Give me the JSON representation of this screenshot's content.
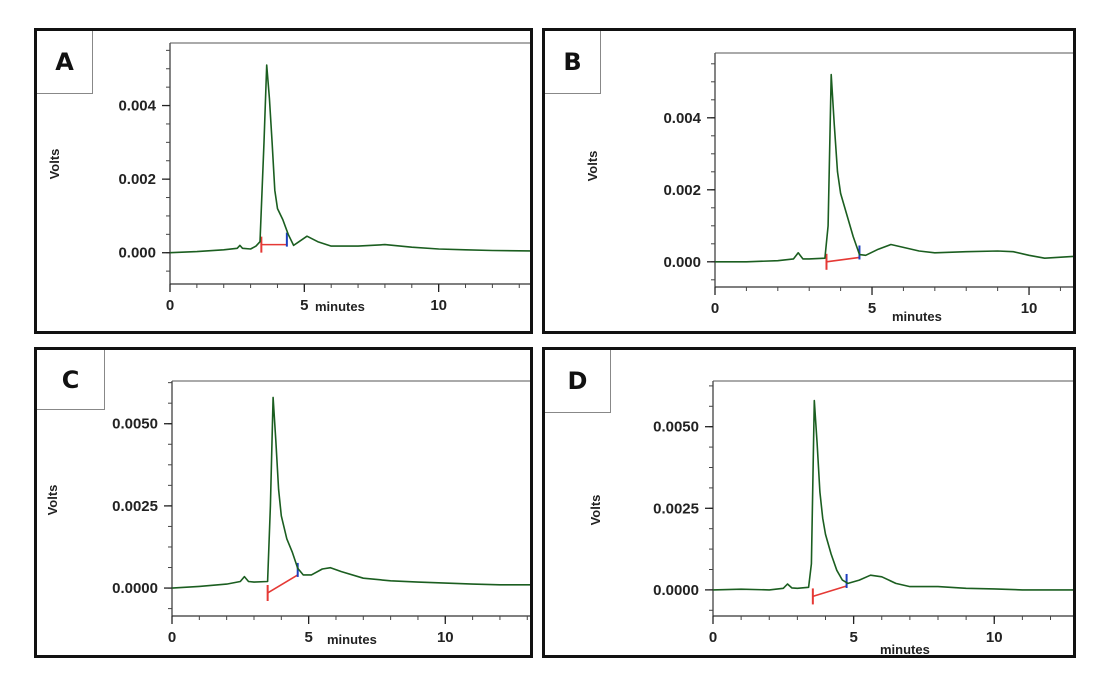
{
  "chart_data": [
    {
      "type": "line",
      "panel_label": "A",
      "xlabel": "minutes",
      "ylabel": "Volts",
      "x_ticks": [
        0,
        5,
        10
      ],
      "y_ticks": [
        0.0,
        0.002,
        0.004
      ],
      "y_tick_labels": [
        "0.000",
        "0.002",
        "0.004"
      ],
      "xlim": [
        0,
        13.4
      ],
      "ylim": [
        -0.00085,
        0.0057
      ],
      "series": [
        {
          "color": "#1b5e20",
          "points": [
            [
              0,
              0.0
            ],
            [
              1.0,
              3e-05
            ],
            [
              2.0,
              8e-05
            ],
            [
              2.5,
              0.00012
            ],
            [
              2.6,
              0.0002
            ],
            [
              2.7,
              0.00012
            ],
            [
              3.0,
              0.0001
            ],
            [
              3.2,
              0.00018
            ],
            [
              3.35,
              0.0003
            ],
            [
              3.5,
              0.003
            ],
            [
              3.6,
              0.0051
            ],
            [
              3.7,
              0.0042
            ],
            [
              3.8,
              0.003
            ],
            [
              3.9,
              0.0017
            ],
            [
              4.0,
              0.0012
            ],
            [
              4.2,
              0.0009
            ],
            [
              4.4,
              0.0005
            ],
            [
              4.6,
              0.0002
            ],
            [
              4.8,
              0.0003
            ],
            [
              5.1,
              0.00045
            ],
            [
              5.5,
              0.0003
            ],
            [
              6.0,
              0.00018
            ],
            [
              7.0,
              0.00018
            ],
            [
              8.0,
              0.00022
            ],
            [
              9.0,
              0.00015
            ],
            [
              10.0,
              0.0001
            ],
            [
              11.0,
              8e-05
            ],
            [
              12.0,
              6e-05
            ],
            [
              13.4,
              5e-05
            ]
          ]
        }
      ],
      "integration_marks": {
        "start": {
          "x": 3.4,
          "y": 0.00022,
          "color": "#e53935"
        },
        "end": {
          "x": 4.35,
          "y": 0.00022,
          "color": "#1e3fbf"
        },
        "baseline_color": "#e53935"
      }
    },
    {
      "type": "line",
      "panel_label": "B",
      "xlabel": "minutes",
      "ylabel": "Volts",
      "x_ticks": [
        0,
        5,
        10
      ],
      "y_ticks": [
        0.0,
        0.002,
        0.004
      ],
      "y_tick_labels": [
        "0.000",
        "0.002",
        "0.004"
      ],
      "xlim": [
        0,
        11.4
      ],
      "ylim": [
        -0.0007,
        0.0058
      ],
      "series": [
        {
          "color": "#1b5e20",
          "points": [
            [
              0,
              0.0
            ],
            [
              1.0,
              0.0
            ],
            [
              2.0,
              3e-05
            ],
            [
              2.5,
              8e-05
            ],
            [
              2.65,
              0.00025
            ],
            [
              2.8,
              8e-05
            ],
            [
              3.0,
              8e-05
            ],
            [
              3.5,
              0.0001
            ],
            [
              3.6,
              0.001
            ],
            [
              3.7,
              0.0052
            ],
            [
              3.8,
              0.0038
            ],
            [
              3.9,
              0.0025
            ],
            [
              4.0,
              0.0019
            ],
            [
              4.2,
              0.0013
            ],
            [
              4.4,
              0.0007
            ],
            [
              4.6,
              0.0002
            ],
            [
              4.8,
              0.00018
            ],
            [
              5.2,
              0.00035
            ],
            [
              5.6,
              0.00048
            ],
            [
              6.0,
              0.0004
            ],
            [
              6.5,
              0.0003
            ],
            [
              7.0,
              0.00025
            ],
            [
              8.0,
              0.00028
            ],
            [
              9.0,
              0.0003
            ],
            [
              9.5,
              0.00028
            ],
            [
              10.0,
              0.00018
            ],
            [
              10.5,
              0.0001
            ],
            [
              11.4,
              0.00015
            ]
          ]
        }
      ],
      "integration_marks": {
        "start": {
          "x": 3.55,
          "y": 0.0,
          "color": "#e53935"
        },
        "end": {
          "x": 4.6,
          "y": 0.00012,
          "color": "#1e3fbf"
        },
        "baseline_color": "#e53935"
      }
    },
    {
      "type": "line",
      "panel_label": "C",
      "xlabel": "minutes",
      "ylabel": "Volts",
      "x_ticks": [
        0,
        5,
        10
      ],
      "y_ticks": [
        0.0,
        0.0025,
        0.005
      ],
      "y_tick_labels": [
        "0.0000",
        "0.0025",
        "0.0050"
      ],
      "xlim": [
        0,
        13.1
      ],
      "ylim": [
        -0.00085,
        0.0063
      ],
      "series": [
        {
          "color": "#1b5e20",
          "points": [
            [
              0,
              0.0
            ],
            [
              1.0,
              5e-05
            ],
            [
              2.0,
              0.00012
            ],
            [
              2.5,
              0.0002
            ],
            [
              2.65,
              0.00035
            ],
            [
              2.8,
              0.0002
            ],
            [
              3.0,
              0.00018
            ],
            [
              3.5,
              0.0002
            ],
            [
              3.6,
              0.0025
            ],
            [
              3.7,
              0.0058
            ],
            [
              3.8,
              0.0045
            ],
            [
              3.9,
              0.003
            ],
            [
              4.0,
              0.0022
            ],
            [
              4.2,
              0.0015
            ],
            [
              4.4,
              0.0011
            ],
            [
              4.6,
              0.0006
            ],
            [
              4.8,
              0.0004
            ],
            [
              5.1,
              0.0004
            ],
            [
              5.5,
              0.00058
            ],
            [
              5.8,
              0.00062
            ],
            [
              6.2,
              0.0005
            ],
            [
              7.0,
              0.0003
            ],
            [
              8.0,
              0.00022
            ],
            [
              9.0,
              0.00018
            ],
            [
              10.0,
              0.00015
            ],
            [
              11.0,
              0.00012
            ],
            [
              12.0,
              0.0001
            ],
            [
              13.1,
              0.0001
            ]
          ]
        }
      ],
      "integration_marks": {
        "start": {
          "x": 3.5,
          "y": -0.00015,
          "color": "#e53935"
        },
        "end": {
          "x": 4.6,
          "y": 0.0004,
          "color": "#1e3fbf"
        },
        "baseline_color": "#e53935"
      }
    },
    {
      "type": "line",
      "panel_label": "D",
      "xlabel": "minutes",
      "ylabel": "Volts",
      "x_ticks": [
        0,
        5,
        10
      ],
      "y_ticks": [
        0.0,
        0.0025,
        0.005
      ],
      "y_tick_labels": [
        "0.0000",
        "0.0025",
        "0.0050"
      ],
      "xlim": [
        0,
        12.8
      ],
      "ylim": [
        -0.0008,
        0.0064
      ],
      "series": [
        {
          "color": "#1b5e20",
          "points": [
            [
              0,
              0.0
            ],
            [
              1.0,
              2e-05
            ],
            [
              2.0,
              0.0
            ],
            [
              2.5,
              5e-05
            ],
            [
              2.65,
              0.00018
            ],
            [
              2.8,
              6e-05
            ],
            [
              3.0,
              5e-05
            ],
            [
              3.4,
              8e-05
            ],
            [
              3.5,
              0.0008
            ],
            [
              3.6,
              0.0058
            ],
            [
              3.7,
              0.0045
            ],
            [
              3.8,
              0.003
            ],
            [
              3.9,
              0.0022
            ],
            [
              4.0,
              0.0017
            ],
            [
              4.2,
              0.0011
            ],
            [
              4.4,
              0.0006
            ],
            [
              4.6,
              0.0003
            ],
            [
              4.8,
              0.0002
            ],
            [
              5.2,
              0.0003
            ],
            [
              5.6,
              0.00045
            ],
            [
              6.0,
              0.0004
            ],
            [
              6.5,
              0.0002
            ],
            [
              7.0,
              0.0001
            ],
            [
              8.0,
              0.0001
            ],
            [
              9.0,
              5e-05
            ],
            [
              10.0,
              3e-05
            ],
            [
              11.0,
              0.0
            ],
            [
              12.8,
              0.0
            ]
          ]
        }
      ],
      "integration_marks": {
        "start": {
          "x": 3.55,
          "y": -0.0002,
          "color": "#e53935"
        },
        "end": {
          "x": 4.75,
          "y": 0.00012,
          "color": "#1e3fbf"
        },
        "baseline_color": "#e53935"
      }
    }
  ]
}
